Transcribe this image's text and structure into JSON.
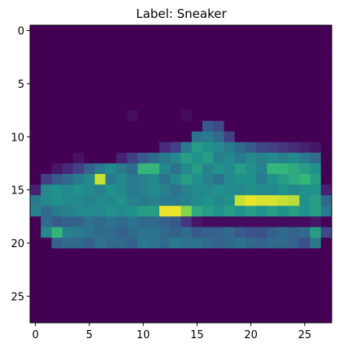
{
  "chart_data": {
    "type": "heatmap",
    "title": "Label: Sneaker",
    "colormap": "viridis",
    "value_range": [
      0,
      255
    ],
    "rows": 28,
    "cols": 28,
    "xlim": [
      -0.5,
      27.5
    ],
    "ylim": [
      27.5,
      -0.5
    ],
    "x_ticks": [
      0,
      5,
      10,
      15,
      20,
      25
    ],
    "y_ticks": [
      0,
      5,
      10,
      15,
      20,
      25
    ],
    "x_tick_labels": [
      "0",
      "5",
      "10",
      "15",
      "20",
      "25"
    ],
    "y_tick_labels": [
      "0",
      "5",
      "10",
      "15",
      "20",
      "25"
    ],
    "grid": false,
    "sparse_cells": [
      [
        8,
        9,
        12
      ],
      [
        8,
        14,
        10
      ],
      [
        9,
        16,
        90
      ],
      [
        9,
        17,
        70
      ],
      [
        10,
        15,
        120
      ],
      [
        10,
        16,
        130
      ],
      [
        10,
        17,
        110
      ],
      [
        10,
        18,
        60
      ],
      [
        11,
        12,
        40
      ],
      [
        11,
        13,
        60
      ],
      [
        11,
        14,
        130
      ],
      [
        11,
        15,
        170
      ],
      [
        11,
        16,
        160
      ],
      [
        11,
        17,
        150
      ],
      [
        11,
        18,
        130
      ],
      [
        11,
        19,
        110
      ],
      [
        11,
        20,
        90
      ],
      [
        11,
        21,
        70
      ],
      [
        11,
        22,
        60
      ],
      [
        11,
        23,
        50
      ],
      [
        11,
        24,
        40
      ],
      [
        11,
        25,
        30
      ],
      [
        11,
        26,
        20
      ],
      [
        12,
        4,
        15
      ],
      [
        12,
        8,
        30
      ],
      [
        12,
        9,
        60
      ],
      [
        12,
        10,
        90
      ],
      [
        12,
        11,
        110
      ],
      [
        12,
        12,
        130
      ],
      [
        12,
        13,
        150
      ],
      [
        12,
        14,
        170
      ],
      [
        12,
        15,
        160
      ],
      [
        12,
        16,
        170
      ],
      [
        12,
        17,
        140
      ],
      [
        12,
        18,
        150
      ],
      [
        12,
        19,
        130
      ],
      [
        12,
        20,
        150
      ],
      [
        12,
        21,
        140
      ],
      [
        12,
        22,
        150
      ],
      [
        12,
        23,
        140
      ],
      [
        12,
        24,
        150
      ],
      [
        12,
        25,
        130
      ],
      [
        12,
        26,
        110
      ],
      [
        13,
        2,
        20
      ],
      [
        13,
        3,
        40
      ],
      [
        13,
        4,
        60
      ],
      [
        13,
        5,
        100
      ],
      [
        13,
        6,
        130
      ],
      [
        13,
        7,
        150
      ],
      [
        13,
        8,
        130
      ],
      [
        13,
        9,
        110
      ],
      [
        13,
        10,
        190
      ],
      [
        13,
        11,
        190
      ],
      [
        13,
        12,
        150
      ],
      [
        13,
        13,
        120
      ],
      [
        13,
        14,
        150
      ],
      [
        13,
        15,
        170
      ],
      [
        13,
        16,
        140
      ],
      [
        13,
        17,
        160
      ],
      [
        13,
        18,
        150
      ],
      [
        13,
        19,
        170
      ],
      [
        13,
        20,
        160
      ],
      [
        13,
        21,
        140
      ],
      [
        13,
        22,
        190
      ],
      [
        13,
        23,
        190
      ],
      [
        13,
        24,
        180
      ],
      [
        13,
        25,
        170
      ],
      [
        13,
        26,
        160
      ],
      [
        14,
        1,
        60
      ],
      [
        14,
        2,
        90
      ],
      [
        14,
        3,
        110
      ],
      [
        14,
        4,
        130
      ],
      [
        14,
        5,
        150
      ],
      [
        14,
        6,
        240
      ],
      [
        14,
        7,
        130
      ],
      [
        14,
        8,
        150
      ],
      [
        14,
        9,
        130
      ],
      [
        14,
        10,
        140
      ],
      [
        14,
        11,
        150
      ],
      [
        14,
        12,
        120
      ],
      [
        14,
        13,
        150
      ],
      [
        14,
        14,
        170
      ],
      [
        14,
        15,
        160
      ],
      [
        14,
        16,
        140
      ],
      [
        14,
        17,
        120
      ],
      [
        14,
        18,
        150
      ],
      [
        14,
        19,
        160
      ],
      [
        14,
        20,
        160
      ],
      [
        14,
        21,
        130
      ],
      [
        14,
        22,
        160
      ],
      [
        14,
        23,
        170
      ],
      [
        14,
        24,
        180
      ],
      [
        14,
        25,
        190
      ],
      [
        14,
        26,
        170
      ],
      [
        15,
        0,
        30
      ],
      [
        15,
        1,
        150
      ],
      [
        15,
        2,
        160
      ],
      [
        15,
        3,
        150
      ],
      [
        15,
        4,
        160
      ],
      [
        15,
        5,
        150
      ],
      [
        15,
        6,
        140
      ],
      [
        15,
        7,
        160
      ],
      [
        15,
        8,
        150
      ],
      [
        15,
        9,
        130
      ],
      [
        15,
        10,
        140
      ],
      [
        15,
        11,
        150
      ],
      [
        15,
        12,
        140
      ],
      [
        15,
        13,
        120
      ],
      [
        15,
        14,
        140
      ],
      [
        15,
        15,
        150
      ],
      [
        15,
        16,
        150
      ],
      [
        15,
        17,
        160
      ],
      [
        15,
        18,
        150
      ],
      [
        15,
        19,
        150
      ],
      [
        15,
        20,
        160
      ],
      [
        15,
        21,
        150
      ],
      [
        15,
        22,
        150
      ],
      [
        15,
        23,
        160
      ],
      [
        15,
        24,
        150
      ],
      [
        15,
        25,
        160
      ],
      [
        15,
        26,
        160
      ],
      [
        15,
        27,
        30
      ],
      [
        16,
        0,
        130
      ],
      [
        16,
        1,
        150
      ],
      [
        16,
        2,
        160
      ],
      [
        16,
        3,
        150
      ],
      [
        16,
        4,
        150
      ],
      [
        16,
        5,
        140
      ],
      [
        16,
        6,
        150
      ],
      [
        16,
        7,
        150
      ],
      [
        16,
        8,
        160
      ],
      [
        16,
        9,
        140
      ],
      [
        16,
        10,
        130
      ],
      [
        16,
        11,
        140
      ],
      [
        16,
        12,
        130
      ],
      [
        16,
        13,
        130
      ],
      [
        16,
        14,
        140
      ],
      [
        16,
        15,
        150
      ],
      [
        16,
        16,
        160
      ],
      [
        16,
        17,
        150
      ],
      [
        16,
        18,
        160
      ],
      [
        16,
        19,
        240
      ],
      [
        16,
        20,
        250
      ],
      [
        16,
        21,
        245
      ],
      [
        16,
        22,
        245
      ],
      [
        16,
        23,
        240
      ],
      [
        16,
        24,
        235
      ],
      [
        16,
        25,
        160
      ],
      [
        16,
        26,
        170
      ],
      [
        16,
        27,
        110
      ],
      [
        17,
        0,
        140
      ],
      [
        17,
        1,
        110
      ],
      [
        17,
        2,
        130
      ],
      [
        17,
        3,
        140
      ],
      [
        17,
        4,
        150
      ],
      [
        17,
        5,
        150
      ],
      [
        17,
        6,
        150
      ],
      [
        17,
        7,
        160
      ],
      [
        17,
        8,
        150
      ],
      [
        17,
        9,
        160
      ],
      [
        17,
        10,
        170
      ],
      [
        17,
        11,
        170
      ],
      [
        17,
        12,
        250
      ],
      [
        17,
        13,
        250
      ],
      [
        17,
        14,
        220
      ],
      [
        17,
        15,
        180
      ],
      [
        17,
        16,
        170
      ],
      [
        17,
        17,
        160
      ],
      [
        17,
        18,
        170
      ],
      [
        17,
        19,
        160
      ],
      [
        17,
        20,
        170
      ],
      [
        17,
        21,
        160
      ],
      [
        17,
        22,
        170
      ],
      [
        17,
        23,
        160
      ],
      [
        17,
        24,
        170
      ],
      [
        17,
        25,
        160
      ],
      [
        17,
        26,
        170
      ],
      [
        17,
        27,
        130
      ],
      [
        18,
        1,
        110
      ],
      [
        18,
        2,
        90
      ],
      [
        18,
        3,
        100
      ],
      [
        18,
        4,
        100
      ],
      [
        18,
        5,
        120
      ],
      [
        18,
        6,
        110
      ],
      [
        18,
        7,
        120
      ],
      [
        18,
        8,
        110
      ],
      [
        18,
        9,
        120
      ],
      [
        18,
        10,
        110
      ],
      [
        18,
        11,
        110
      ],
      [
        18,
        12,
        100
      ],
      [
        18,
        13,
        90
      ],
      [
        18,
        14,
        50
      ],
      [
        18,
        15,
        20
      ],
      [
        18,
        16,
        10
      ],
      [
        18,
        17,
        10
      ],
      [
        18,
        18,
        10
      ],
      [
        18,
        19,
        10
      ],
      [
        18,
        20,
        10
      ],
      [
        18,
        21,
        10
      ],
      [
        18,
        22,
        10
      ],
      [
        18,
        23,
        10
      ],
      [
        18,
        24,
        10
      ],
      [
        18,
        25,
        10
      ],
      [
        18,
        26,
        20
      ],
      [
        19,
        1,
        150
      ],
      [
        19,
        2,
        190
      ],
      [
        19,
        3,
        140
      ],
      [
        19,
        4,
        130
      ],
      [
        19,
        5,
        120
      ],
      [
        19,
        6,
        110
      ],
      [
        19,
        7,
        110
      ],
      [
        19,
        8,
        100
      ],
      [
        19,
        9,
        110
      ],
      [
        19,
        10,
        120
      ],
      [
        19,
        11,
        120
      ],
      [
        19,
        12,
        110
      ],
      [
        19,
        13,
        100
      ],
      [
        19,
        14,
        110
      ],
      [
        19,
        15,
        90
      ],
      [
        19,
        16,
        100
      ],
      [
        19,
        17,
        100
      ],
      [
        19,
        18,
        110
      ],
      [
        19,
        19,
        90
      ],
      [
        19,
        20,
        80
      ],
      [
        19,
        21,
        80
      ],
      [
        19,
        22,
        100
      ],
      [
        19,
        23,
        110
      ],
      [
        19,
        24,
        100
      ],
      [
        19,
        25,
        110
      ],
      [
        19,
        26,
        170
      ],
      [
        19,
        27,
        70
      ],
      [
        20,
        2,
        100
      ],
      [
        20,
        3,
        110
      ],
      [
        20,
        4,
        110
      ],
      [
        20,
        5,
        100
      ],
      [
        20,
        6,
        120
      ],
      [
        20,
        7,
        110
      ],
      [
        20,
        8,
        110
      ],
      [
        20,
        9,
        100
      ],
      [
        20,
        10,
        130
      ],
      [
        20,
        11,
        120
      ],
      [
        20,
        12,
        110
      ],
      [
        20,
        13,
        130
      ],
      [
        20,
        14,
        120
      ],
      [
        20,
        15,
        120
      ],
      [
        20,
        16,
        110
      ],
      [
        20,
        17,
        100
      ],
      [
        20,
        18,
        110
      ],
      [
        20,
        19,
        120
      ],
      [
        20,
        20,
        110
      ],
      [
        20,
        21,
        100
      ],
      [
        20,
        22,
        110
      ],
      [
        20,
        23,
        110
      ],
      [
        20,
        24,
        100
      ],
      [
        20,
        25,
        80
      ],
      [
        20,
        26,
        130
      ]
    ]
  }
}
